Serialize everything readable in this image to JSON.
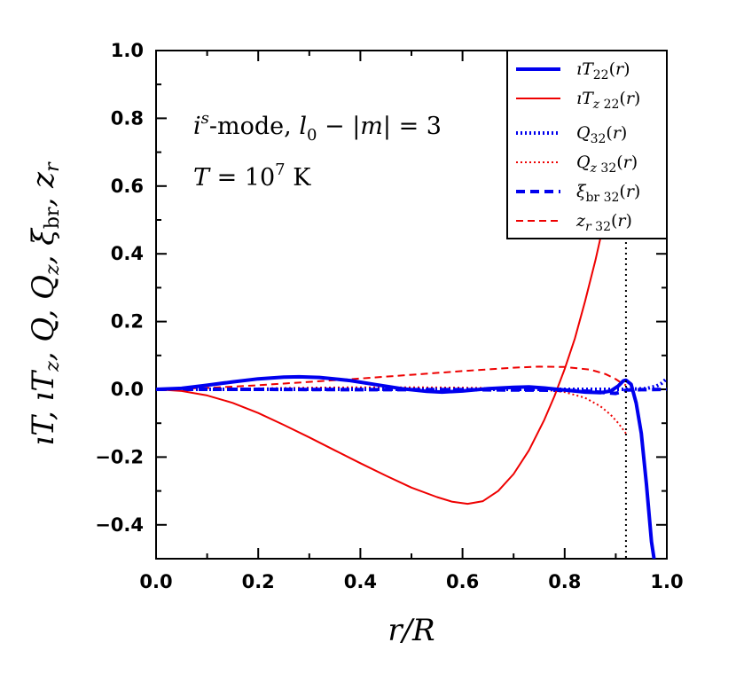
{
  "chart_data": {
    "type": "line",
    "xlabel": "r/R",
    "ylabel": "ıT, ıTz, Q, Qz, ξbr, zr",
    "xlim": [
      0.0,
      1.0
    ],
    "ylim": [
      -0.5,
      1.0
    ],
    "x_ticks": [
      0.0,
      0.2,
      0.4,
      0.6,
      0.8,
      1.0
    ],
    "y_ticks": [
      -0.4,
      -0.2,
      0.0,
      0.2,
      0.4,
      0.6,
      0.8,
      1.0
    ],
    "x_tick_labels": [
      "0.0",
      "0.2",
      "0.4",
      "0.6",
      "0.8",
      "1.0"
    ],
    "y_tick_labels": [
      "−0.4",
      "−0.2",
      "0.0",
      "0.2",
      "0.4",
      "0.6",
      "0.8",
      "1.0"
    ],
    "annotations": [
      "i^s-mode, l0 − |m| = 3",
      "T = 10^7 K"
    ],
    "vline_x": 0.92,
    "legend_position": "top-right",
    "grid": false,
    "series": [
      {
        "name": "ıT22(r)",
        "color": "#0000ee",
        "style": "solid-thick",
        "points": [
          [
            0,
            0
          ],
          [
            0.05,
            0.003
          ],
          [
            0.1,
            0.012
          ],
          [
            0.15,
            0.022
          ],
          [
            0.2,
            0.031
          ],
          [
            0.25,
            0.036
          ],
          [
            0.28,
            0.037
          ],
          [
            0.32,
            0.035
          ],
          [
            0.38,
            0.026
          ],
          [
            0.43,
            0.014
          ],
          [
            0.48,
            0.002
          ],
          [
            0.53,
            -0.006
          ],
          [
            0.56,
            -0.008
          ],
          [
            0.6,
            -0.005
          ],
          [
            0.65,
            0.002
          ],
          [
            0.7,
            0.006
          ],
          [
            0.73,
            0.007
          ],
          [
            0.76,
            0.004
          ],
          [
            0.8,
            -0.002
          ],
          [
            0.84,
            -0.008
          ],
          [
            0.87,
            -0.01
          ],
          [
            0.89,
            -0.005
          ],
          [
            0.905,
            0.01
          ],
          [
            0.915,
            0.025
          ],
          [
            0.92,
            0.027
          ],
          [
            0.93,
            0.015
          ],
          [
            0.94,
            -0.04
          ],
          [
            0.95,
            -0.13
          ],
          [
            0.96,
            -0.28
          ],
          [
            0.97,
            -0.45
          ],
          [
            0.975,
            -0.5
          ]
        ]
      },
      {
        "name": "ıTz22(r)",
        "color": "#ee0000",
        "style": "solid-thin",
        "points": [
          [
            0,
            0
          ],
          [
            0.05,
            -0.005
          ],
          [
            0.1,
            -0.018
          ],
          [
            0.15,
            -0.04
          ],
          [
            0.2,
            -0.07
          ],
          [
            0.25,
            -0.105
          ],
          [
            0.3,
            -0.142
          ],
          [
            0.35,
            -0.18
          ],
          [
            0.4,
            -0.218
          ],
          [
            0.45,
            -0.255
          ],
          [
            0.5,
            -0.29
          ],
          [
            0.55,
            -0.318
          ],
          [
            0.58,
            -0.332
          ],
          [
            0.61,
            -0.338
          ],
          [
            0.64,
            -0.33
          ],
          [
            0.67,
            -0.3
          ],
          [
            0.7,
            -0.25
          ],
          [
            0.73,
            -0.18
          ],
          [
            0.76,
            -0.09
          ],
          [
            0.78,
            -0.02
          ],
          [
            0.8,
            0.06
          ],
          [
            0.82,
            0.15
          ],
          [
            0.84,
            0.26
          ],
          [
            0.86,
            0.38
          ],
          [
            0.875,
            0.48
          ],
          [
            0.885,
            0.56
          ],
          [
            0.895,
            0.65
          ],
          [
            0.905,
            0.75
          ],
          [
            0.912,
            0.83
          ],
          [
            0.918,
            0.9
          ],
          [
            0.925,
            1.0
          ]
        ]
      },
      {
        "name": "Q32(r)",
        "color": "#0000ee",
        "style": "dotted-thick",
        "points": [
          [
            0,
            0
          ],
          [
            0.2,
            0
          ],
          [
            0.4,
            0
          ],
          [
            0.6,
            0
          ],
          [
            0.8,
            0
          ],
          [
            0.92,
            0
          ],
          [
            0.96,
            0.002
          ],
          [
            0.98,
            0.01
          ],
          [
            0.99,
            0.018
          ],
          [
            1.0,
            0.032
          ]
        ]
      },
      {
        "name": "Qz32(r)",
        "color": "#ee0000",
        "style": "dotted-thin",
        "points": [
          [
            0,
            0
          ],
          [
            0.1,
            0.001
          ],
          [
            0.2,
            0.003
          ],
          [
            0.3,
            0.005
          ],
          [
            0.4,
            0.006
          ],
          [
            0.5,
            0.006
          ],
          [
            0.6,
            0.005
          ],
          [
            0.7,
            0.003
          ],
          [
            0.75,
            0.0
          ],
          [
            0.8,
            -0.008
          ],
          [
            0.84,
            -0.025
          ],
          [
            0.87,
            -0.05
          ],
          [
            0.89,
            -0.075
          ],
          [
            0.905,
            -0.1
          ],
          [
            0.915,
            -0.12
          ],
          [
            0.92,
            -0.13
          ]
        ]
      },
      {
        "name": "ξbr32(r)",
        "color": "#0000ee",
        "style": "dashed-thick",
        "points": [
          [
            0,
            0
          ],
          [
            0.2,
            0
          ],
          [
            0.4,
            -0.001
          ],
          [
            0.6,
            -0.001
          ],
          [
            0.8,
            -0.003
          ],
          [
            0.85,
            -0.006
          ],
          [
            0.88,
            -0.01
          ],
          [
            0.9,
            -0.012
          ],
          [
            0.91,
            -0.008
          ],
          [
            0.92,
            -0.002
          ],
          [
            0.95,
            -0.001
          ],
          [
            1.0,
            0
          ]
        ]
      },
      {
        "name": "zr32(r)",
        "color": "#ee0000",
        "style": "dashed-thin",
        "points": [
          [
            0,
            0
          ],
          [
            0.1,
            0.004
          ],
          [
            0.2,
            0.012
          ],
          [
            0.3,
            0.022
          ],
          [
            0.4,
            0.032
          ],
          [
            0.5,
            0.043
          ],
          [
            0.6,
            0.054
          ],
          [
            0.7,
            0.064
          ],
          [
            0.75,
            0.067
          ],
          [
            0.8,
            0.066
          ],
          [
            0.85,
            0.058
          ],
          [
            0.88,
            0.045
          ],
          [
            0.9,
            0.03
          ],
          [
            0.91,
            0.02
          ],
          [
            0.92,
            0.012
          ]
        ]
      }
    ]
  }
}
